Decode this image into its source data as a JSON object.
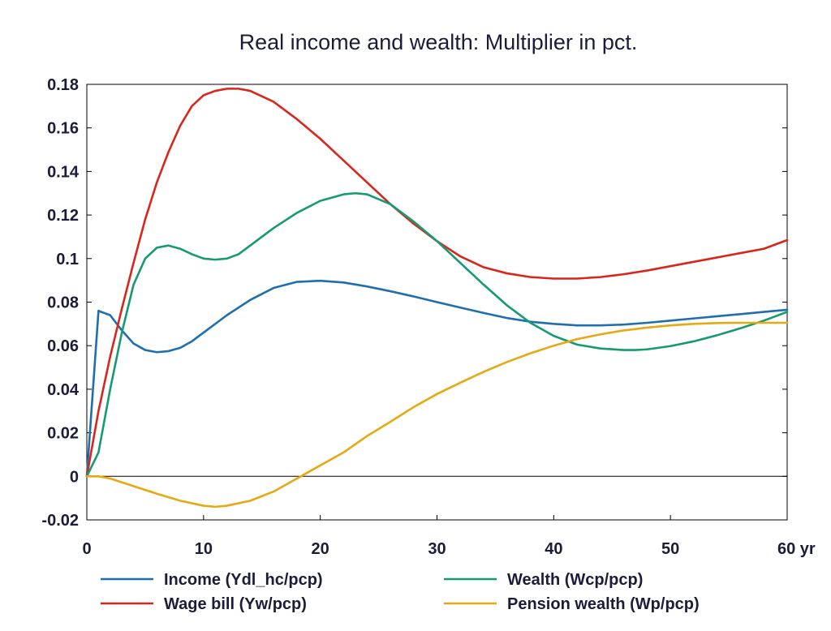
{
  "chart_data": {
    "type": "line",
    "title": "Real income and wealth: Multiplier in pct.",
    "xlabel": "",
    "ylabel": "",
    "x_unit_label": "yr",
    "xlim": [
      0,
      60
    ],
    "ylim": [
      -0.02,
      0.18
    ],
    "x_ticks": [
      0,
      10,
      20,
      30,
      40,
      50,
      60
    ],
    "x_tick_labels": [
      "0",
      "10",
      "20",
      "30",
      "40",
      "50",
      "60 yr"
    ],
    "y_ticks": [
      -0.02,
      0,
      0.02,
      0.04,
      0.06,
      0.08,
      0.1,
      0.12,
      0.14,
      0.16,
      0.18
    ],
    "y_tick_labels": [
      "-0.02",
      "0",
      "0.02",
      "0.04",
      "0.06",
      "0.08",
      "0.1",
      "0.12",
      "0.14",
      "0.16",
      "0.18"
    ],
    "grid": false,
    "zero_line": true,
    "legend_position": "bottom",
    "series": [
      {
        "name": "Income (Ydl_hc/pcp)",
        "color": "#1f6fae",
        "points": [
          [
            0,
            0
          ],
          [
            1,
            0.076
          ],
          [
            2,
            0.074
          ],
          [
            3,
            0.067
          ],
          [
            4,
            0.061
          ],
          [
            5,
            0.058
          ],
          [
            6,
            0.057
          ],
          [
            7,
            0.0575
          ],
          [
            8,
            0.059
          ],
          [
            9,
            0.062
          ],
          [
            10,
            0.066
          ],
          [
            12,
            0.074
          ],
          [
            14,
            0.081
          ],
          [
            16,
            0.0865
          ],
          [
            18,
            0.0893
          ],
          [
            20,
            0.0898
          ],
          [
            22,
            0.089
          ],
          [
            24,
            0.0872
          ],
          [
            26,
            0.085
          ],
          [
            28,
            0.0826
          ],
          [
            30,
            0.08
          ],
          [
            32,
            0.0775
          ],
          [
            34,
            0.075
          ],
          [
            36,
            0.0727
          ],
          [
            38,
            0.071
          ],
          [
            40,
            0.07
          ],
          [
            42,
            0.0693
          ],
          [
            44,
            0.0693
          ],
          [
            46,
            0.0697
          ],
          [
            48,
            0.0705
          ],
          [
            50,
            0.0715
          ],
          [
            52,
            0.0725
          ],
          [
            54,
            0.0735
          ],
          [
            56,
            0.0745
          ],
          [
            58,
            0.0755
          ],
          [
            60,
            0.0765
          ]
        ]
      },
      {
        "name": "Wage bill (Yw/pcp)",
        "color": "#d9261c",
        "points": [
          [
            0,
            0
          ],
          [
            1,
            0.03
          ],
          [
            2,
            0.055
          ],
          [
            3,
            0.077
          ],
          [
            4,
            0.098
          ],
          [
            5,
            0.118
          ],
          [
            6,
            0.135
          ],
          [
            7,
            0.149
          ],
          [
            8,
            0.161
          ],
          [
            9,
            0.17
          ],
          [
            10,
            0.175
          ],
          [
            11,
            0.177
          ],
          [
            12,
            0.178
          ],
          [
            13,
            0.178
          ],
          [
            14,
            0.177
          ],
          [
            16,
            0.172
          ],
          [
            18,
            0.164
          ],
          [
            20,
            0.155
          ],
          [
            22,
            0.145
          ],
          [
            24,
            0.135
          ],
          [
            26,
            0.125
          ],
          [
            28,
            0.116
          ],
          [
            30,
            0.108
          ],
          [
            32,
            0.101
          ],
          [
            34,
            0.096
          ],
          [
            36,
            0.0932
          ],
          [
            38,
            0.0915
          ],
          [
            40,
            0.0908
          ],
          [
            42,
            0.0908
          ],
          [
            44,
            0.0915
          ],
          [
            46,
            0.0928
          ],
          [
            48,
            0.0945
          ],
          [
            50,
            0.0965
          ],
          [
            52,
            0.0985
          ],
          [
            54,
            0.1005
          ],
          [
            56,
            0.1025
          ],
          [
            58,
            0.1045
          ],
          [
            60,
            0.1085
          ]
        ]
      },
      {
        "name": "Wealth (Wcp/pcp)",
        "color": "#159a72",
        "points": [
          [
            0,
            0
          ],
          [
            1,
            0.011
          ],
          [
            2,
            0.04
          ],
          [
            3,
            0.066
          ],
          [
            4,
            0.088
          ],
          [
            5,
            0.1
          ],
          [
            6,
            0.105
          ],
          [
            7,
            0.106
          ],
          [
            8,
            0.1045
          ],
          [
            9,
            0.102
          ],
          [
            10,
            0.1
          ],
          [
            11,
            0.0995
          ],
          [
            12,
            0.1
          ],
          [
            13,
            0.102
          ],
          [
            14,
            0.106
          ],
          [
            16,
            0.114
          ],
          [
            18,
            0.121
          ],
          [
            20,
            0.1265
          ],
          [
            22,
            0.1295
          ],
          [
            23,
            0.13
          ],
          [
            24,
            0.1295
          ],
          [
            26,
            0.125
          ],
          [
            28,
            0.117
          ],
          [
            30,
            0.108
          ],
          [
            32,
            0.098
          ],
          [
            34,
            0.088
          ],
          [
            36,
            0.0785
          ],
          [
            38,
            0.0705
          ],
          [
            40,
            0.0645
          ],
          [
            42,
            0.0605
          ],
          [
            44,
            0.0587
          ],
          [
            46,
            0.058
          ],
          [
            47,
            0.058
          ],
          [
            48,
            0.0583
          ],
          [
            50,
            0.0598
          ],
          [
            52,
            0.062
          ],
          [
            54,
            0.0648
          ],
          [
            56,
            0.068
          ],
          [
            58,
            0.0715
          ],
          [
            60,
            0.0755
          ]
        ]
      },
      {
        "name": "Pension wealth (Wp/pcp)",
        "color": "#e5a913",
        "points": [
          [
            0,
            0
          ],
          [
            1,
            0
          ],
          [
            2,
            -0.001
          ],
          [
            4,
            -0.0045
          ],
          [
            6,
            -0.008
          ],
          [
            8,
            -0.0112
          ],
          [
            10,
            -0.0135
          ],
          [
            11,
            -0.014
          ],
          [
            12,
            -0.0135
          ],
          [
            14,
            -0.0112
          ],
          [
            16,
            -0.007
          ],
          [
            18,
            -0.001
          ],
          [
            20,
            0.005
          ],
          [
            22,
            0.011
          ],
          [
            24,
            0.0185
          ],
          [
            26,
            0.025
          ],
          [
            28,
            0.0318
          ],
          [
            30,
            0.0378
          ],
          [
            32,
            0.043
          ],
          [
            34,
            0.048
          ],
          [
            36,
            0.0525
          ],
          [
            38,
            0.0565
          ],
          [
            40,
            0.06
          ],
          [
            42,
            0.063
          ],
          [
            44,
            0.0652
          ],
          [
            46,
            0.067
          ],
          [
            48,
            0.0683
          ],
          [
            50,
            0.0693
          ],
          [
            52,
            0.07
          ],
          [
            54,
            0.0704
          ],
          [
            56,
            0.0705
          ],
          [
            58,
            0.0705
          ],
          [
            60,
            0.0705
          ]
        ]
      }
    ]
  }
}
